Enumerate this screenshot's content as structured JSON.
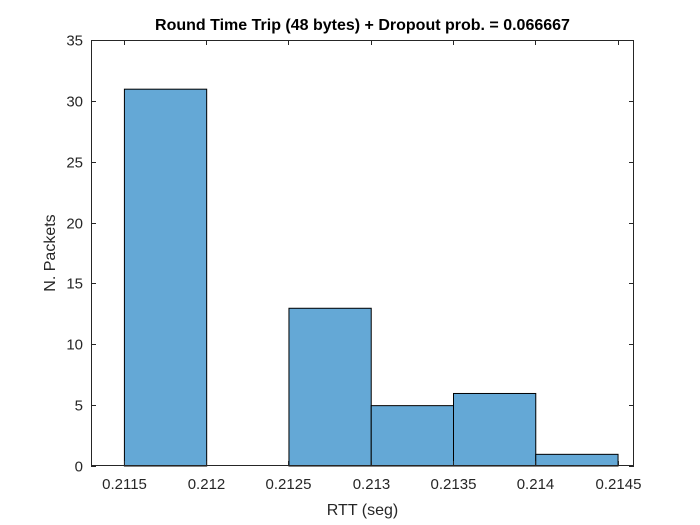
{
  "chart_data": {
    "type": "bar",
    "title": "Round Time Trip (48 bytes) + Dropout prob. = 0.066667",
    "xlabel": "RTT (seg)",
    "ylabel": "N. Packets",
    "xlim": [
      0.2113,
      0.2146
    ],
    "ylim": [
      0,
      35
    ],
    "xticks": [
      0.2115,
      0.212,
      0.2125,
      0.213,
      0.2135,
      0.214,
      0.2145
    ],
    "xtick_labels": [
      "0.2115",
      "0.212",
      "0.2125",
      "0.213",
      "0.2135",
      "0.214",
      "0.2145"
    ],
    "yticks": [
      0,
      5,
      10,
      15,
      20,
      25,
      30,
      35
    ],
    "ytick_labels": [
      "0",
      "5",
      "10",
      "15",
      "20",
      "25",
      "30",
      "35"
    ],
    "bin_edges": [
      0.2115,
      0.212,
      0.2125,
      0.213,
      0.2135,
      0.214,
      0.2145
    ],
    "values": [
      31,
      0,
      13,
      5,
      6,
      1
    ],
    "bar_color": "#64a8d6",
    "edge_color": "#000000",
    "grid": false,
    "legend": "none"
  }
}
